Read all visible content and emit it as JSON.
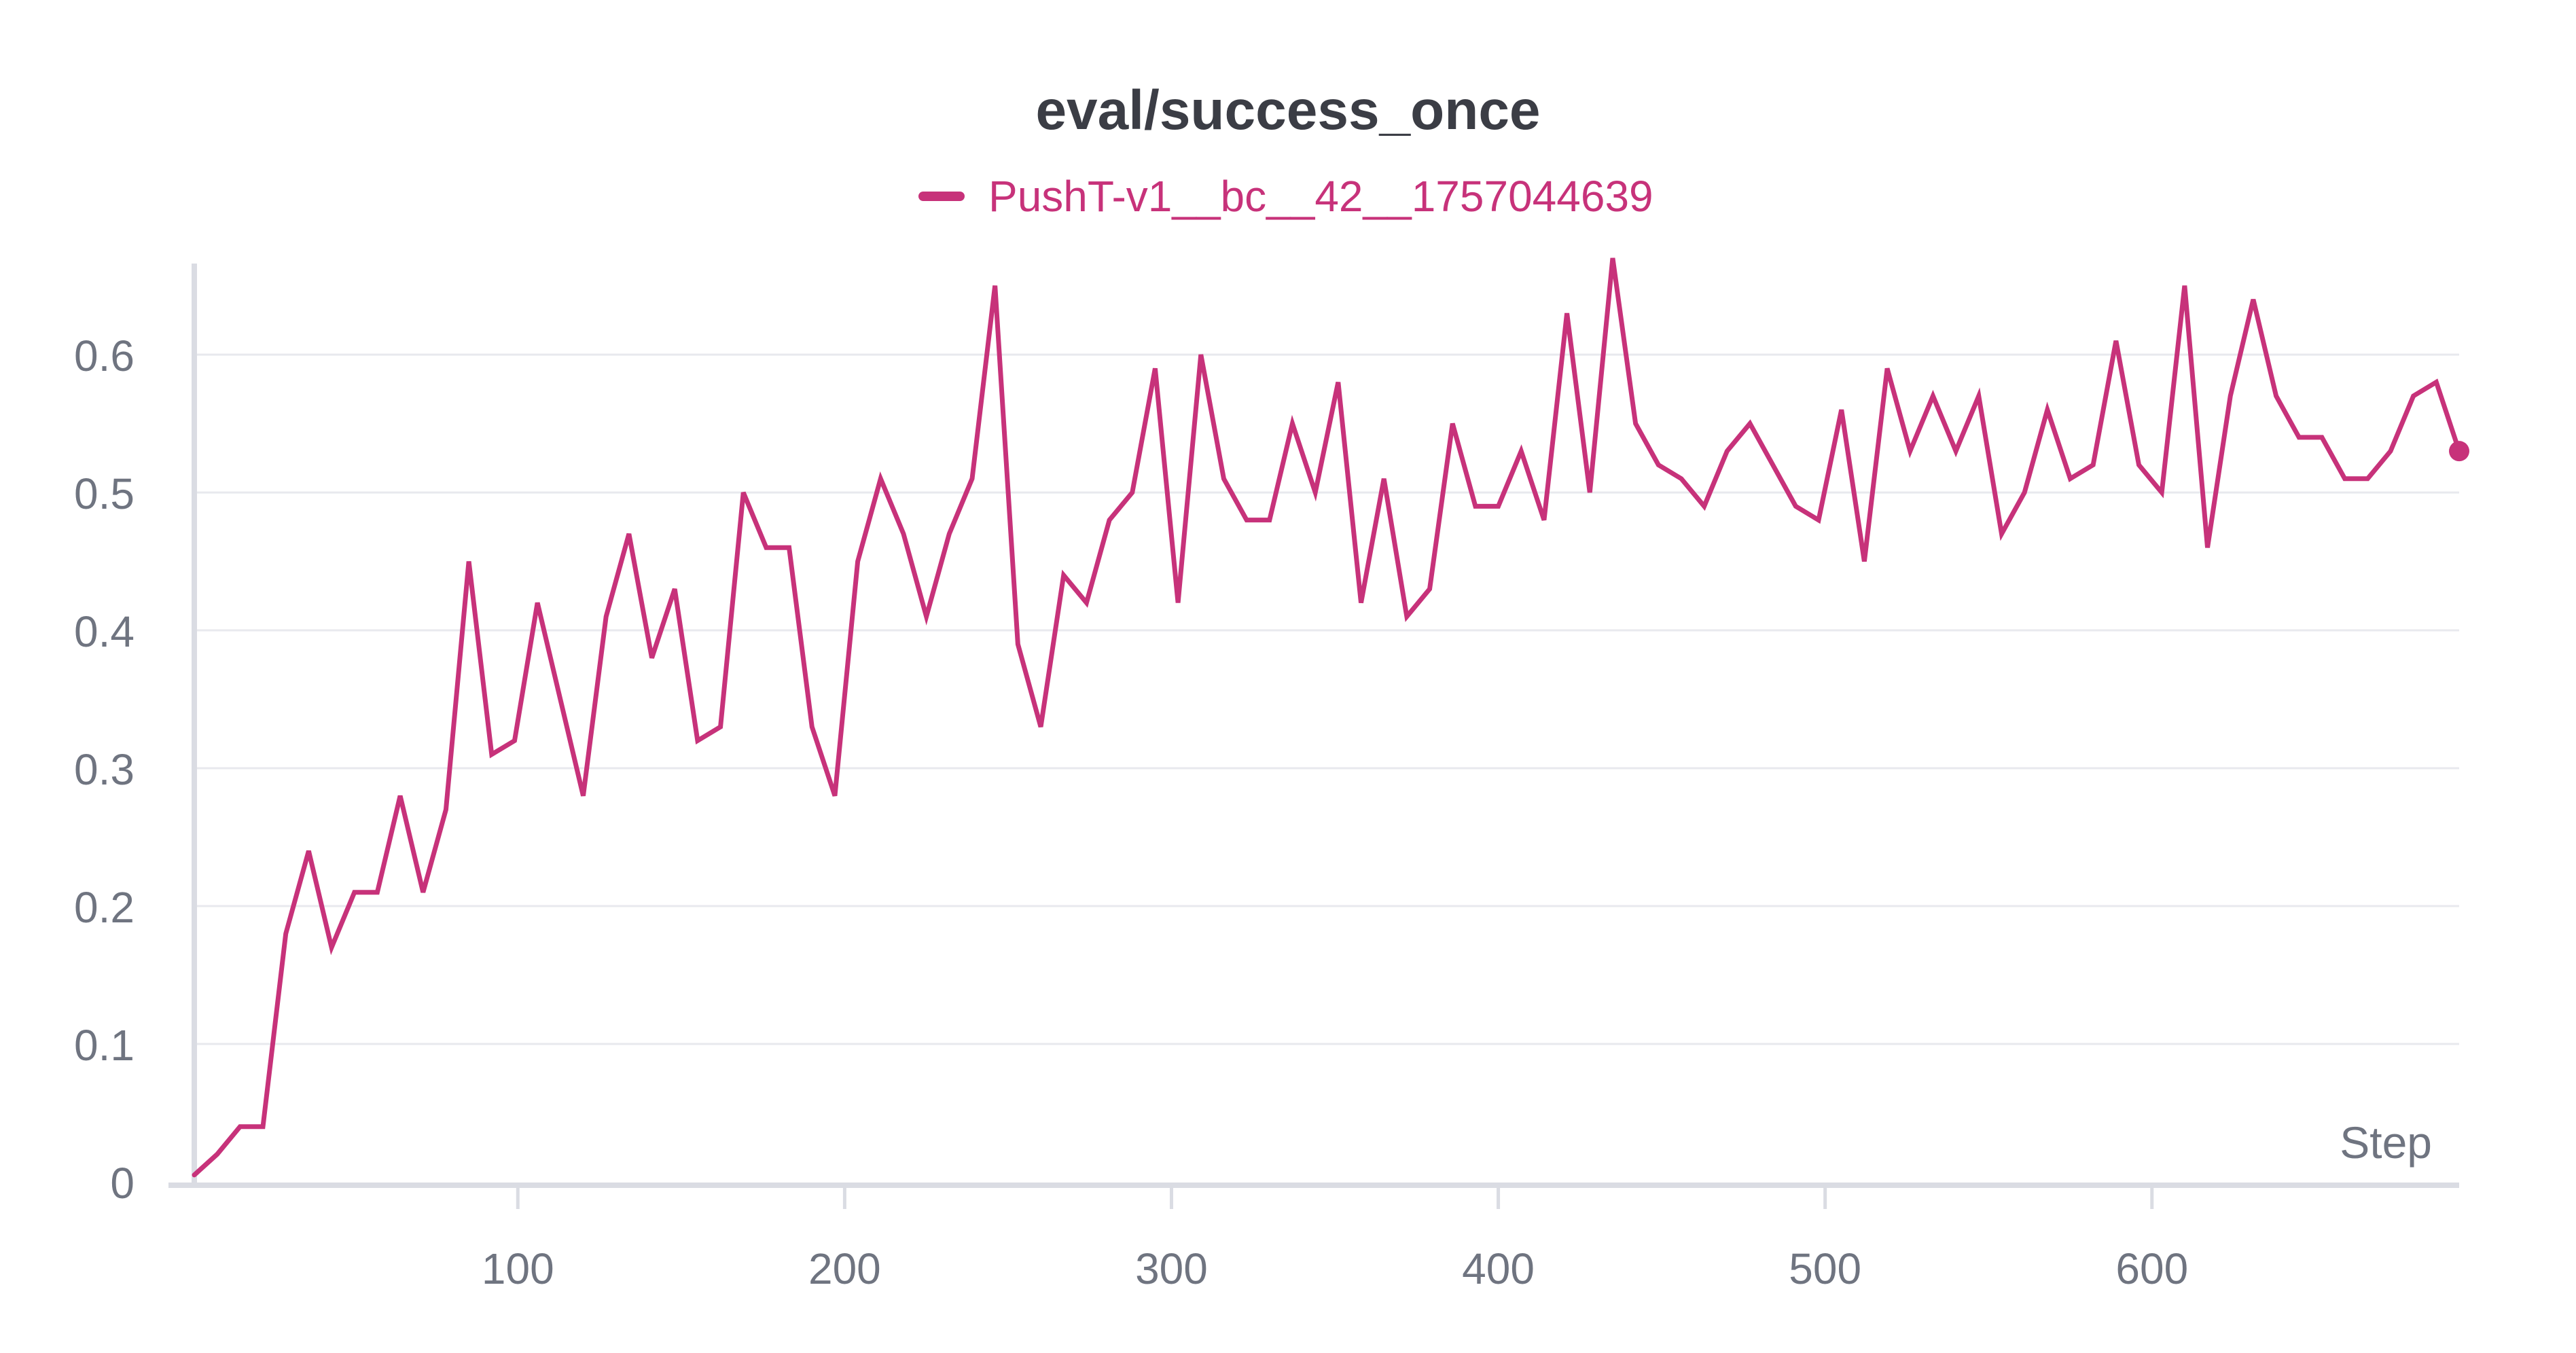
{
  "chart_data": {
    "type": "line",
    "title": "eval/success_once",
    "xlabel": "Step",
    "ylabel": "",
    "xlim": [
      1,
      694
    ],
    "ylim": [
      0,
      0.67
    ],
    "yticks": [
      0,
      0.1,
      0.2,
      0.3,
      0.4,
      0.5,
      0.6
    ],
    "ytick_labels": [
      "0",
      "0.1",
      "0.2",
      "0.3",
      "0.4",
      "0.5",
      "0.6"
    ],
    "xticks": [
      100,
      200,
      300,
      400,
      500,
      600
    ],
    "xtick_labels": [
      "100",
      "200",
      "300",
      "400",
      "500",
      "600"
    ],
    "grid": true,
    "legend_position": "top-center",
    "color": "#c7327a",
    "series": [
      {
        "name": "PushT-v1__bc__42__1757044639",
        "color": "#c7327a",
        "x": [
          1,
          8,
          15,
          22,
          29,
          36,
          43,
          50,
          57,
          64,
          71,
          78,
          85,
          92,
          99,
          106,
          113,
          120,
          127,
          134,
          141,
          148,
          155,
          162,
          169,
          176,
          183,
          190,
          197,
          204,
          211,
          218,
          225,
          232,
          239,
          246,
          253,
          260,
          267,
          274,
          281,
          288,
          295,
          302,
          309,
          316,
          323,
          330,
          337,
          344,
          351,
          358,
          365,
          372,
          379,
          386,
          393,
          400,
          407,
          414,
          421,
          428,
          435,
          442,
          449,
          456,
          463,
          470,
          477,
          484,
          491,
          498,
          505,
          512,
          519,
          526,
          533,
          540,
          547,
          554,
          561,
          568,
          575,
          582,
          589,
          596,
          603,
          610,
          617,
          624,
          631,
          638,
          645,
          652,
          659,
          666,
          673,
          680,
          687,
          694
        ],
        "values": [
          0.005,
          0.02,
          0.04,
          0.04,
          0.18,
          0.24,
          0.17,
          0.21,
          0.21,
          0.28,
          0.21,
          0.27,
          0.45,
          0.31,
          0.32,
          0.42,
          0.35,
          0.28,
          0.41,
          0.47,
          0.38,
          0.43,
          0.32,
          0.33,
          0.5,
          0.46,
          0.46,
          0.33,
          0.28,
          0.45,
          0.51,
          0.47,
          0.41,
          0.47,
          0.51,
          0.65,
          0.39,
          0.33,
          0.44,
          0.42,
          0.48,
          0.5,
          0.59,
          0.42,
          0.6,
          0.51,
          0.48,
          0.48,
          0.55,
          0.5,
          0.58,
          0.42,
          0.51,
          0.41,
          0.43,
          0.55,
          0.49,
          0.49,
          0.53,
          0.48,
          0.63,
          0.5,
          0.67,
          0.55,
          0.52,
          0.51,
          0.49,
          0.53,
          0.55,
          0.52,
          0.49,
          0.48,
          0.56,
          0.45,
          0.59,
          0.53,
          0.57,
          0.53,
          0.57,
          0.47,
          0.5,
          0.56,
          0.51,
          0.52,
          0.61,
          0.52,
          0.5,
          0.65,
          0.46,
          0.57,
          0.64,
          0.57,
          0.54,
          0.54,
          0.51,
          0.51,
          0.53,
          0.57,
          0.58,
          0.53
        ]
      }
    ]
  }
}
